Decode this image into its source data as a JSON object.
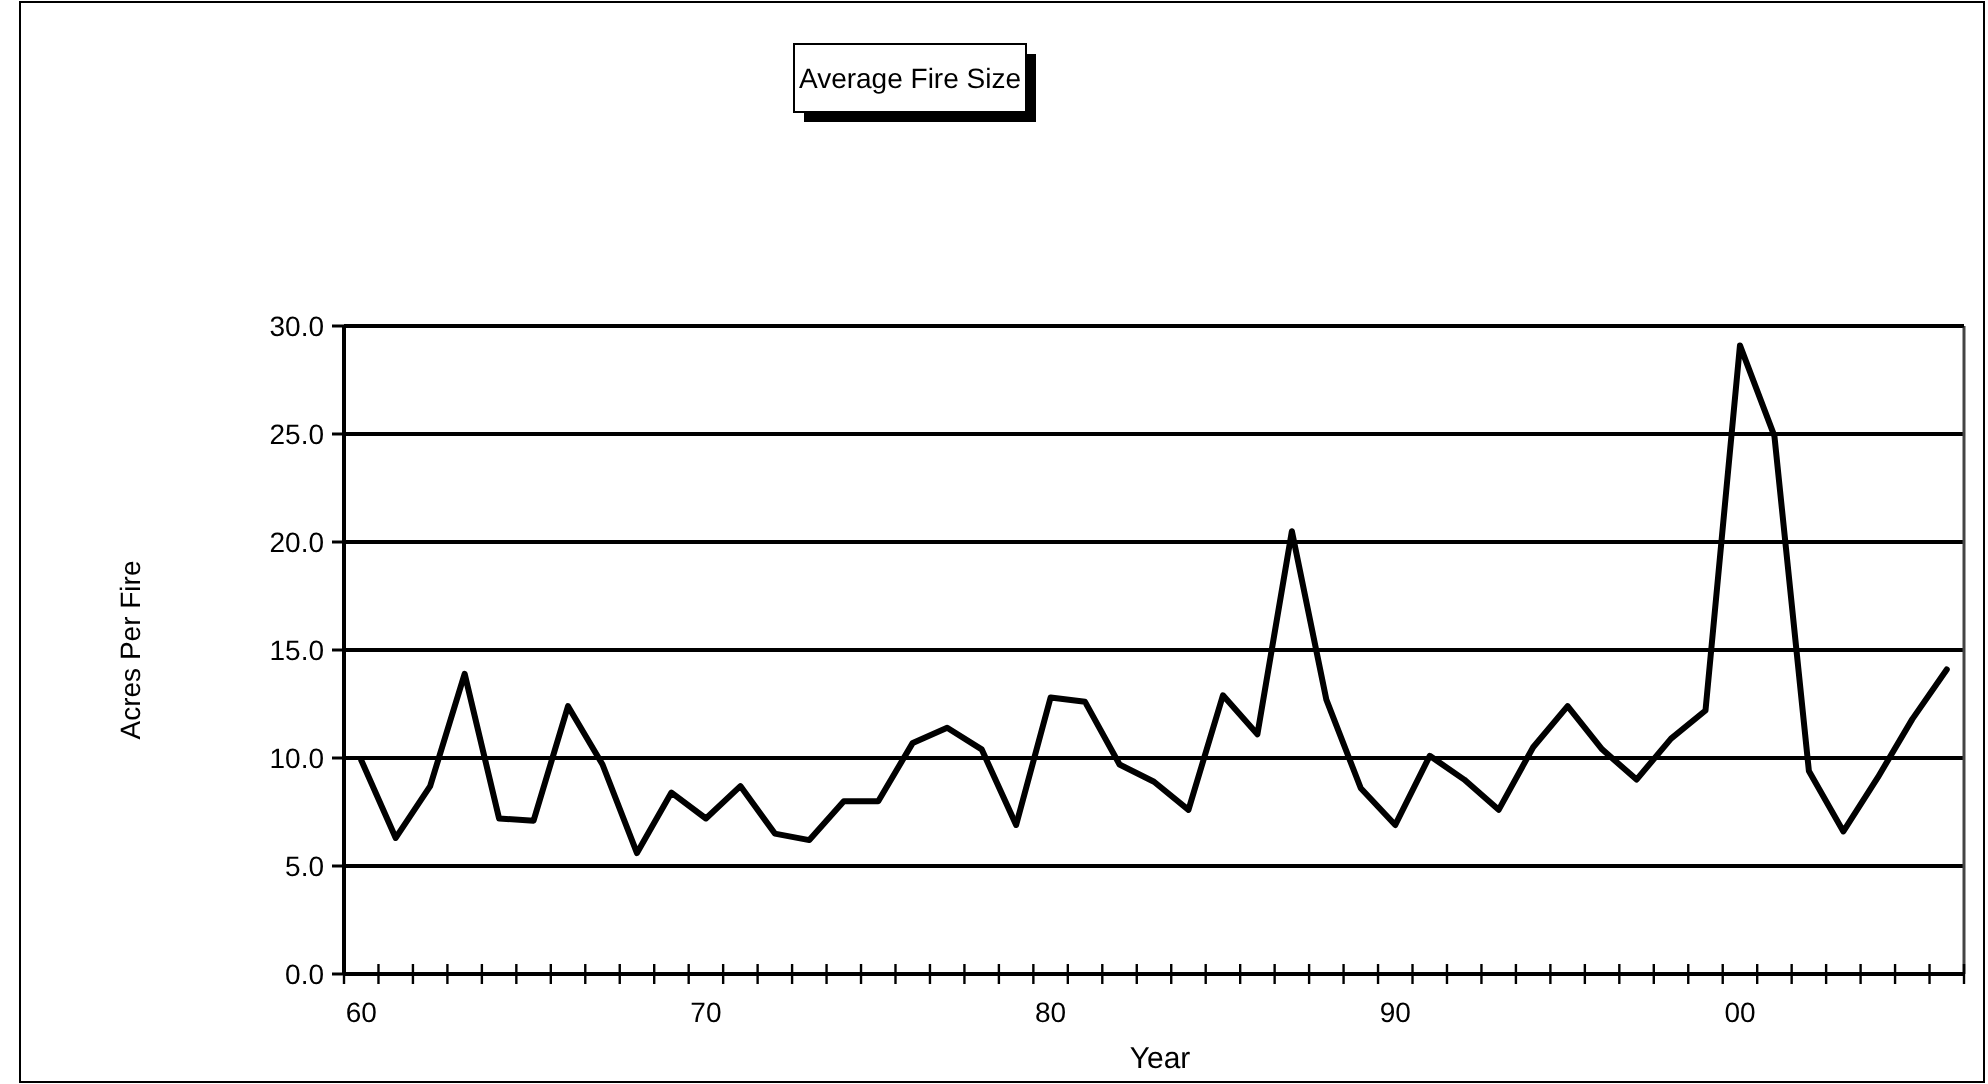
{
  "chart_data": {
    "type": "line",
    "title": "Average Fire Size",
    "xlabel": "Year",
    "ylabel": "Acres Per Fire",
    "categories": [
      "60",
      null,
      null,
      null,
      null,
      null,
      null,
      null,
      null,
      null,
      "70",
      null,
      null,
      null,
      null,
      null,
      null,
      null,
      null,
      null,
      "80",
      null,
      null,
      null,
      null,
      null,
      null,
      null,
      null,
      null,
      "90",
      null,
      null,
      null,
      null,
      null,
      null,
      null,
      null,
      null,
      "00",
      null,
      null,
      null,
      null,
      null,
      null
    ],
    "series": [
      {
        "color": "#000000",
        "values": [
          9.9,
          6.3,
          8.7,
          13.9,
          7.2,
          7.1,
          12.4,
          9.7,
          5.6,
          8.4,
          7.2,
          8.7,
          6.5,
          6.2,
          8.0,
          8.0,
          10.7,
          11.4,
          10.4,
          6.9,
          12.8,
          12.6,
          9.7,
          8.9,
          7.6,
          12.9,
          11.1,
          20.5,
          12.7,
          8.6,
          6.9,
          10.1,
          9.0,
          7.6,
          10.5,
          12.4,
          10.4,
          9.0,
          10.9,
          12.2,
          29.1,
          24.9,
          9.4,
          6.6,
          9.1,
          11.8,
          14.1
        ]
      }
    ],
    "ylim": [
      0,
      30
    ],
    "yticks": [
      {
        "value": 0,
        "label": "0.0"
      },
      {
        "value": 5,
        "label": "5.0"
      },
      {
        "value": 10,
        "label": "10.0"
      },
      {
        "value": 15,
        "label": "15.0"
      },
      {
        "value": 20,
        "label": "20.0"
      },
      {
        "value": 25,
        "label": "25.0"
      },
      {
        "value": 30,
        "label": "30.0"
      }
    ],
    "grid": "y",
    "marker": "none",
    "line_style": "solid"
  }
}
